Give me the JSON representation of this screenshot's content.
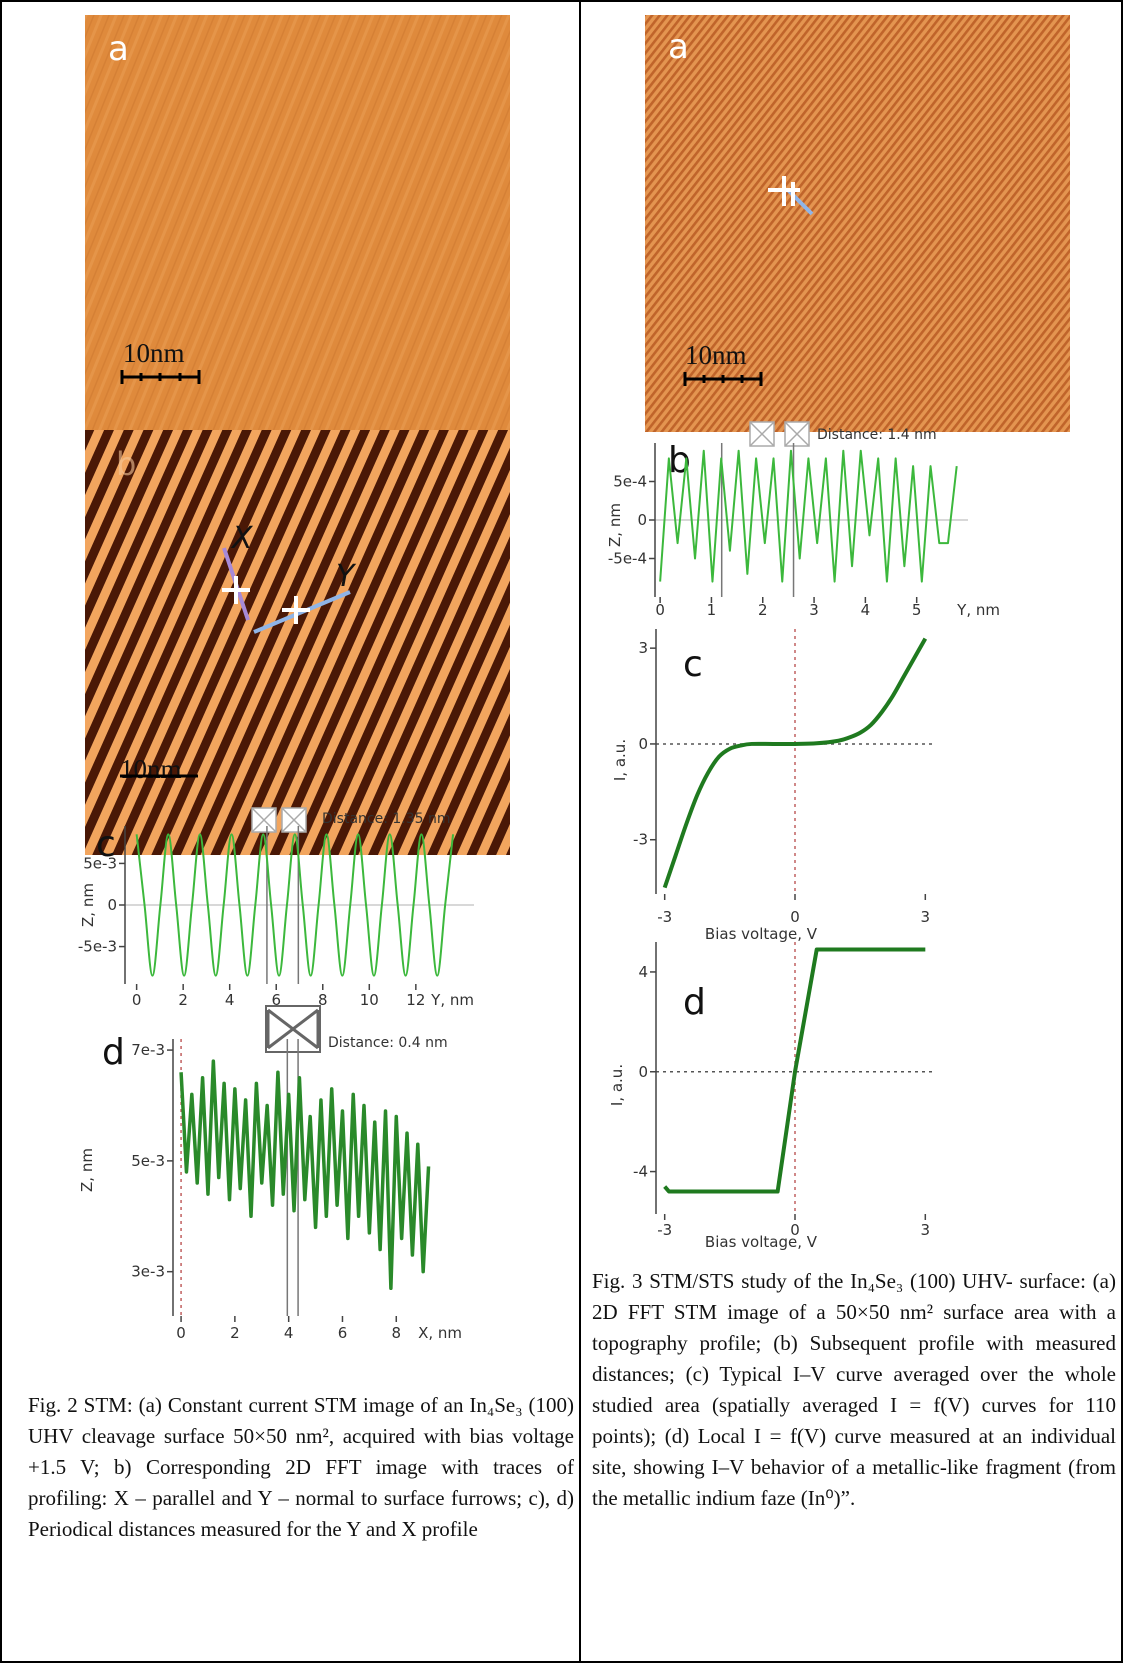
{
  "figures": [
    {
      "panel_a": {
        "label": "a",
        "scale_bar": "10nm"
      },
      "panel_b": {
        "label": "b",
        "scale_bar": "10nm",
        "trace_x": "X",
        "trace_y": "Y"
      },
      "caption": "Fig. 2 STM: (a) Constant current STM image of an In₄Se₃ (100) UHV cleavage surface 50×50 nm², acquired with bias voltage +1.5 V; b) Corresponding 2D FFT image with traces of profiling: X – parallel and Y – normal to surface furrows; c), d) Periodical distances measured for the Y and X profile"
    },
    {
      "panel_a": {
        "label": "a",
        "scale_bar": "10nm"
      },
      "caption": "Fig. 3 STM/STS study of the In₄Se₃ (100) UHV- surface: (a) 2D FFT STM image of a 50×50 nm² surface area with a topography profile; (b) Subsequent profile with measured distances; (c) Typical I–V curve averaged over the whole studied area (spatially averaged I = f(V) curves for 110 points); (d) Local I = f(V) curve measured at an individual site, showing I–V behavior of a metallic-like fragment (from the metallic indium faze (In⁰)”."
    }
  ],
  "chart_data": [
    {
      "type": "line",
      "panel_label": "c",
      "annotation": "Distance: 1.35 nm",
      "x_label": "Y, nm",
      "y_label": "Z, nm",
      "smooth": true,
      "zero_lines": "y",
      "zero_line_style": "solid",
      "x": [
        0,
        0.34,
        0.68,
        1.02,
        1.36,
        1.7,
        2.04,
        2.38,
        2.72,
        3.06,
        3.4,
        3.74,
        4.08,
        4.42,
        4.76,
        5.1,
        5.44,
        5.78,
        6.12,
        6.46,
        6.8,
        7.14,
        7.48,
        7.82,
        8.16,
        8.5,
        8.84,
        9.18,
        9.52,
        9.86,
        10.2,
        10.54,
        10.88,
        11.22,
        11.56,
        11.9,
        12.24,
        12.58,
        12.92,
        13.26,
        13.6
      ],
      "series": [
        {
          "color": "#3cb83c",
          "values": [
            0.0085,
            0,
            -0.0085,
            0,
            0.0085,
            0,
            -0.0085,
            0,
            0.0085,
            0,
            -0.0085,
            0,
            0.0085,
            0,
            -0.0085,
            0,
            0.0085,
            0,
            -0.0085,
            0,
            0.0085,
            0,
            -0.0085,
            0,
            0.0085,
            0,
            -0.0085,
            0,
            0.0085,
            0,
            -0.0085,
            0,
            0.0085,
            0,
            -0.0085,
            0,
            0.0085,
            0,
            -0.0085,
            0,
            0.0085
          ]
        }
      ],
      "cursors": [
        5.6,
        6.95
      ],
      "xlim": [
        -0.5,
        14.5
      ],
      "ylim": [
        -0.0095,
        0.0095
      ],
      "xticks": [
        0,
        2,
        4,
        6,
        8,
        10,
        12
      ],
      "yticks": [
        {
          "value": 0.005,
          "label": "5e-3"
        },
        0,
        {
          "value": -0.005,
          "label": "-5e-3"
        }
      ]
    },
    {
      "type": "line",
      "panel_label": "d",
      "annotation": "Distance: 0.4 nm",
      "x_label": "X, nm",
      "y_label": "Z, nm",
      "smooth": false,
      "zero_lines": "x",
      "zero_line_style": "dotted",
      "x": [
        0,
        0.2,
        0.4,
        0.6,
        0.8,
        1,
        1.2,
        1.4,
        1.6,
        1.8,
        2,
        2.2,
        2.4,
        2.6,
        2.8,
        3,
        3.2,
        3.4,
        3.6,
        3.8,
        4,
        4.2,
        4.4,
        4.6,
        4.8,
        5,
        5.2,
        5.4,
        5.6,
        5.8,
        6,
        6.2,
        6.4,
        6.6,
        6.8,
        7,
        7.2,
        7.4,
        7.6,
        7.8,
        8,
        8.2,
        8.4,
        8.6,
        8.8,
        9,
        9.2
      ],
      "series": [
        {
          "color": "#2a8a2a",
          "values": [
            0.0066,
            0.0048,
            0.0062,
            0.0046,
            0.0065,
            0.0044,
            0.0068,
            0.0047,
            0.0064,
            0.0043,
            0.0063,
            0.0045,
            0.0061,
            0.004,
            0.0064,
            0.0046,
            0.006,
            0.0042,
            0.0066,
            0.0044,
            0.0062,
            0.0041,
            0.0065,
            0.0043,
            0.0058,
            0.0038,
            0.0061,
            0.004,
            0.0063,
            0.0042,
            0.0059,
            0.0036,
            0.0062,
            0.004,
            0.006,
            0.0037,
            0.0057,
            0.0034,
            0.0059,
            0.0027,
            0.0058,
            0.0036,
            0.0055,
            0.0033,
            0.0053,
            0.003,
            0.0049
          ]
        }
      ],
      "cursors": [
        3.95,
        4.35
      ],
      "xlim": [
        -0.3,
        9.7
      ],
      "ylim": [
        0.0022,
        0.0072
      ],
      "xticks": [
        0,
        2,
        4,
        6,
        8
      ],
      "yticks": [
        {
          "value": 0.007,
          "label": "7e-3"
        },
        {
          "value": 0.005,
          "label": "5e-3"
        },
        {
          "value": 0.003,
          "label": "3e-3"
        }
      ]
    },
    {
      "type": "line",
      "panel_label": "b",
      "annotation": "Distance: 1.4 nm",
      "x_label": "Y, nm",
      "y_label": "Z, nm",
      "smooth": false,
      "zero_lines": "y",
      "zero_line_style": "solid",
      "x": [
        0,
        0.17,
        0.34,
        0.51,
        0.68,
        0.85,
        1.02,
        1.19,
        1.36,
        1.53,
        1.7,
        1.87,
        2.04,
        2.21,
        2.38,
        2.55,
        2.72,
        2.89,
        3.06,
        3.23,
        3.4,
        3.57,
        3.74,
        3.91,
        4.08,
        4.25,
        4.42,
        4.59,
        4.76,
        4.93,
        5.1,
        5.27,
        5.44,
        5.61,
        5.78
      ],
      "series": [
        {
          "color": "#3cb83c",
          "values": [
            -0.0008,
            0.0008,
            -0.0003,
            0.0008,
            -0.0005,
            0.0009,
            -0.0008,
            0.0008,
            -0.0004,
            0.0009,
            -0.0007,
            0.0008,
            -0.0003,
            0.0008,
            -0.0008,
            0.0009,
            -0.0005,
            0.0008,
            -0.0003,
            0.0008,
            -0.0008,
            0.0009,
            -0.0006,
            0.0009,
            -0.0002,
            0.0008,
            -0.0008,
            0.0008,
            -0.0006,
            0.0007,
            -0.0008,
            0.0007,
            -0.0003,
            -0.0003,
            0.0007
          ]
        }
      ],
      "cursors": [
        1.2,
        2.6
      ],
      "xlim": [
        -0.1,
        6.0
      ],
      "ylim": [
        -0.001,
        0.001
      ],
      "xticks": [
        0,
        1,
        2,
        3,
        4,
        5
      ],
      "yticks": [
        {
          "value": 0.0005,
          "label": "5e-4"
        },
        0,
        {
          "value": -0.0005,
          "label": "-5e-4"
        }
      ]
    },
    {
      "type": "line",
      "panel_label": "c",
      "x_label": "Bias voltage, V",
      "y_label": "I, a.u.",
      "smooth": true,
      "zero_lines": "xy",
      "zero_line_style": "dotted",
      "x": [
        -3,
        -2.75,
        -2.5,
        -2.25,
        -2,
        -1.75,
        -1.5,
        -1.25,
        -1,
        -0.5,
        0,
        0.5,
        1,
        1.25,
        1.5,
        1.75,
        2,
        2.25,
        2.5,
        2.75,
        3
      ],
      "series": [
        {
          "color": "#1f7a1f",
          "values": [
            -4.5,
            -3.5,
            -2.5,
            -1.6,
            -0.9,
            -0.4,
            -0.15,
            -0.05,
            0,
            0,
            0,
            0.02,
            0.1,
            0.2,
            0.35,
            0.6,
            1.0,
            1.5,
            2.1,
            2.7,
            3.3
          ]
        }
      ],
      "xlim": [
        -3.2,
        3.2
      ],
      "ylim": [
        -4.7,
        3.6
      ],
      "xticks": [
        -3,
        0,
        3
      ],
      "yticks": [
        3,
        0,
        -3
      ]
    },
    {
      "type": "line",
      "panel_label": "d",
      "x_label": "Bias voltage, V",
      "y_label": "I, a.u.",
      "smooth": false,
      "zero_lines": "xy",
      "zero_line_style": "dotted",
      "x": [
        -3,
        -2.9,
        -0.4,
        0,
        0.5,
        3
      ],
      "series": [
        {
          "color": "#1f7a1f",
          "values": [
            -4.6,
            -4.8,
            -4.8,
            0,
            4.9,
            4.9
          ]
        }
      ],
      "xlim": [
        -3.2,
        3.2
      ],
      "ylim": [
        -5.7,
        5.2
      ],
      "xticks": [
        -3,
        0,
        3
      ],
      "yticks": [
        4,
        0,
        -4
      ]
    }
  ]
}
